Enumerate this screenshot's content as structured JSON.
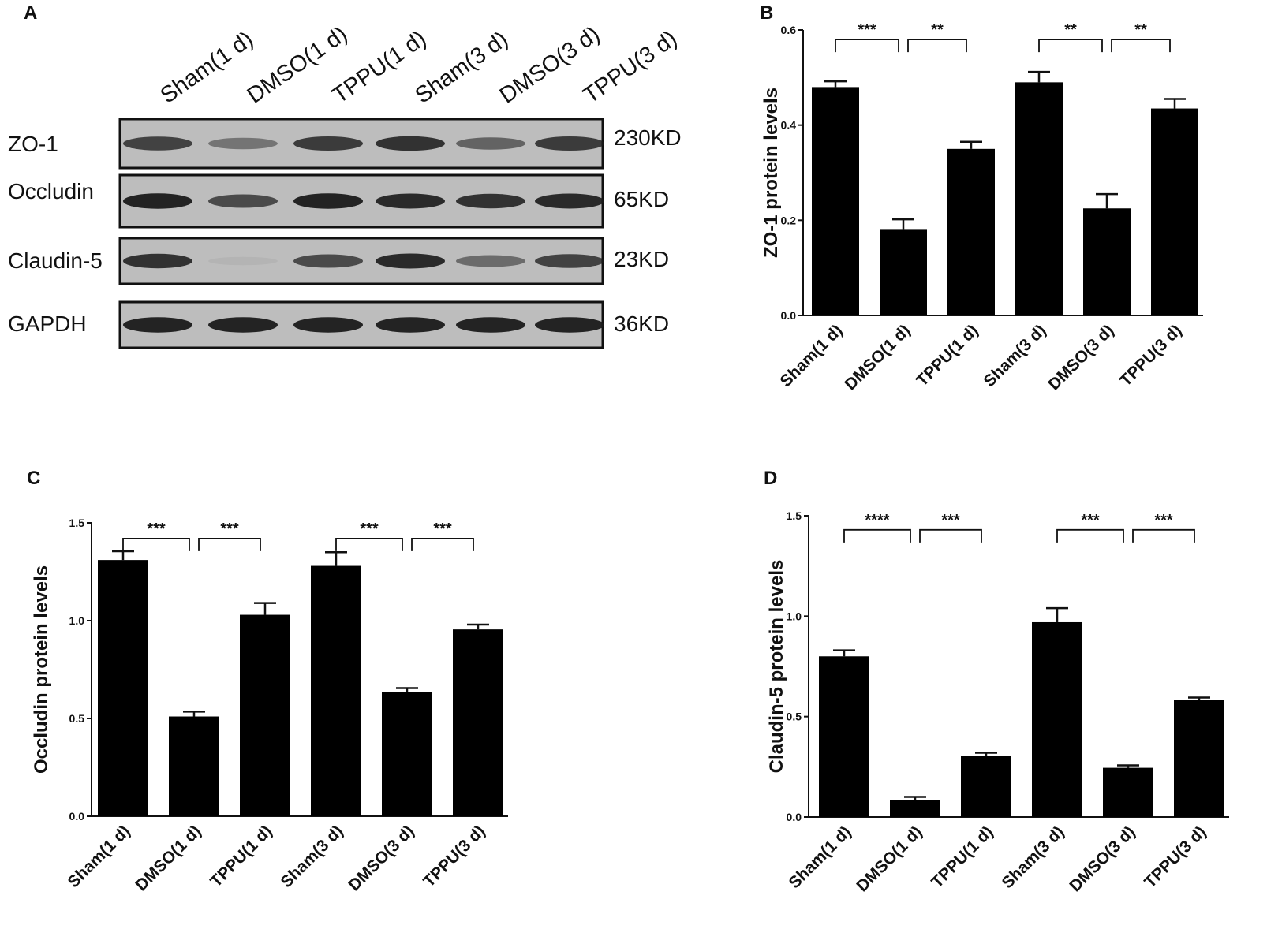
{
  "panels": {
    "A": {
      "letter": "A",
      "lanes": [
        "Sham(1 d)",
        "DMSO(1 d)",
        "TPPU(1 d)",
        "Sham(3 d)",
        "DMSO(3 d)",
        "TPPU(3 d)"
      ],
      "blots": [
        {
          "protein": "ZO-1",
          "size": "230KD",
          "intensities": [
            0.75,
            0.45,
            0.8,
            0.85,
            0.55,
            0.8
          ]
        },
        {
          "protein": "Occludin",
          "size": "65KD",
          "intensities": [
            0.95,
            0.7,
            0.95,
            0.9,
            0.85,
            0.9
          ]
        },
        {
          "protein": "Claudin-5",
          "size": "23KD",
          "intensities": [
            0.85,
            0.05,
            0.7,
            0.9,
            0.5,
            0.75
          ]
        },
        {
          "protein": "GAPDH",
          "size": "36KD",
          "intensities": [
            0.95,
            0.95,
            0.95,
            0.95,
            0.95,
            0.95
          ]
        }
      ]
    }
  },
  "chart_data": [
    {
      "panel": "B",
      "type": "bar",
      "categories": [
        "Sham(1 d)",
        "DMSO(1 d)",
        "TPPU(1 d)",
        "Sham(3 d)",
        "DMSO(3 d)",
        "TPPU(3 d)"
      ],
      "values": [
        0.48,
        0.18,
        0.35,
        0.49,
        0.225,
        0.435
      ],
      "errors": [
        0.012,
        0.022,
        0.015,
        0.022,
        0.03,
        0.02
      ],
      "ylabel": "ZO-1 protein levels",
      "ylim": [
        0,
        0.6
      ],
      "yticks": [
        "0.0",
        "0.2",
        "0.4",
        "0.6"
      ],
      "significance": [
        {
          "from": 0,
          "to": 1,
          "label": "***",
          "value": 0.58
        },
        {
          "from": 1,
          "to": 2,
          "label": "**",
          "value": 0.58
        },
        {
          "from": 3,
          "to": 4,
          "label": "**",
          "value": 0.58
        },
        {
          "from": 4,
          "to": 5,
          "label": "**",
          "value": 0.58
        }
      ]
    },
    {
      "panel": "C",
      "type": "bar",
      "categories": [
        "Sham(1 d)",
        "DMSO(1 d)",
        "TPPU(1 d)",
        "Sham(3 d)",
        "DMSO(3 d)",
        "TPPU(3 d)"
      ],
      "values": [
        1.31,
        0.51,
        1.03,
        1.28,
        0.635,
        0.955
      ],
      "errors": [
        0.045,
        0.025,
        0.06,
        0.07,
        0.02,
        0.025
      ],
      "ylabel": "Occludin protein levels",
      "ylim": [
        0,
        1.5
      ],
      "yticks": [
        "0.0",
        "0.5",
        "1.0",
        "1.5"
      ],
      "significance": [
        {
          "from": 0,
          "to": 1,
          "label": "***",
          "value": 1.42
        },
        {
          "from": 1,
          "to": 2,
          "label": "***",
          "value": 1.42
        },
        {
          "from": 3,
          "to": 4,
          "label": "***",
          "value": 1.42
        },
        {
          "from": 4,
          "to": 5,
          "label": "***",
          "value": 1.42
        }
      ]
    },
    {
      "panel": "D",
      "type": "bar",
      "categories": [
        "Sham(1 d)",
        "DMSO(1 d)",
        "TPPU(1 d)",
        "Sham(3 d)",
        "DMSO(3 d)",
        "TPPU(3 d)"
      ],
      "values": [
        0.8,
        0.085,
        0.305,
        0.97,
        0.245,
        0.585
      ],
      "errors": [
        0.03,
        0.015,
        0.015,
        0.07,
        0.012,
        0.01
      ],
      "ylabel": "Claudin-5 protein levels",
      "ylim": [
        0,
        1.5
      ],
      "yticks": [
        "0.0",
        "0.5",
        "1.0",
        "1.5"
      ],
      "significance": [
        {
          "from": 0,
          "to": 1,
          "label": "****",
          "value": 1.43
        },
        {
          "from": 1,
          "to": 2,
          "label": "***",
          "value": 1.43
        },
        {
          "from": 3,
          "to": 4,
          "label": "***",
          "value": 1.43
        },
        {
          "from": 4,
          "to": 5,
          "label": "***",
          "value": 1.43
        }
      ]
    }
  ],
  "letters": {
    "B": "B",
    "C": "C",
    "D": "D"
  },
  "colors": {
    "bar": "#000000",
    "blot_bg": "#bdbdbd",
    "band": "#1a1a1a"
  }
}
